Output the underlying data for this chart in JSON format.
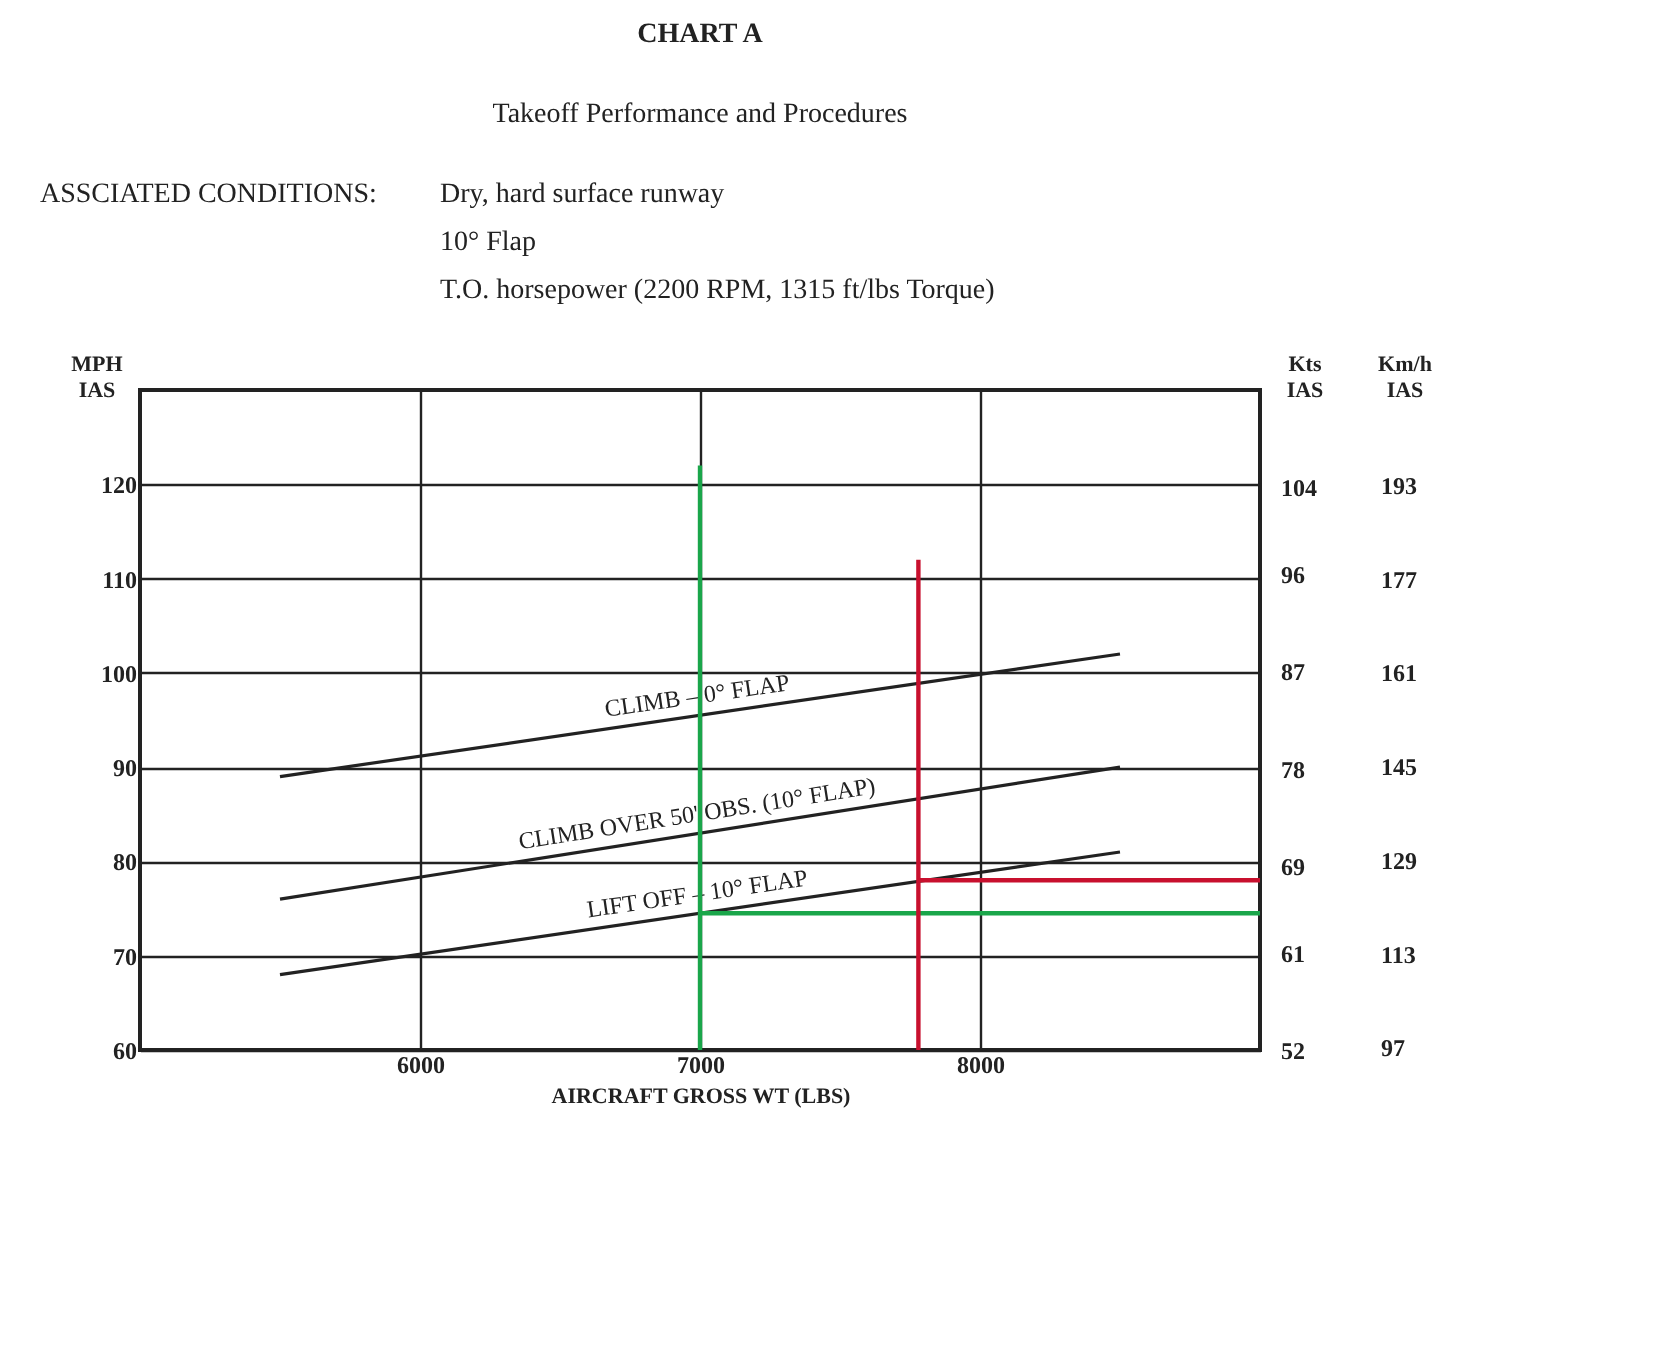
{
  "chart_data": {
    "type": "line",
    "title": "CHART A",
    "subtitle": "Takeoff Performance and Procedures",
    "annotations": [
      "ASSCIATED CONDITIONS:",
      "Dry, hard surface runway",
      "10° Flap",
      "T.O. horsepower (2200 RPM, 1315 ft/lbs Torque)"
    ],
    "xlabel": "AIRCRAFT GROSS WT (LBS)",
    "ylabel": "MPH IAS",
    "y2label": "Kts IAS",
    "y3label": "Km/h IAS",
    "xlim": [
      5000,
      9000
    ],
    "xticks": [
      6000,
      7000,
      8000
    ],
    "ylim": [
      60,
      130
    ],
    "yticks": [
      60,
      70,
      80,
      90,
      100,
      110,
      120
    ],
    "y2lim": [
      52,
      113
    ],
    "y2ticks": [
      52,
      61,
      69,
      78,
      87,
      96,
      104
    ],
    "y3lim": [
      96.56,
      209.21
    ],
    "y3ticks": [
      97,
      113,
      129,
      145,
      161,
      177,
      193
    ],
    "grid": true,
    "marker": "none",
    "line_style": "solid",
    "series": [
      {
        "name": "CLIMB – 0° FLAP",
        "color": "#222222",
        "x": [
          5500,
          8500
        ],
        "values": [
          89,
          102
        ]
      },
      {
        "name": "CLIMB OVER 50' OBS. (10° FLAP)",
        "color": "#222222",
        "x": [
          5500,
          8500
        ],
        "values": [
          76,
          90
        ]
      },
      {
        "name": "LIFT OFF – 10° FLAP",
        "color": "#222222",
        "x": [
          5500,
          8500
        ],
        "values": [
          68,
          81
        ]
      },
      {
        "color": "#1aa64a",
        "x": [
          7000,
          7000
        ],
        "values": [
          60,
          122
        ]
      },
      {
        "color": "#1aa64a",
        "x": [
          7000,
          9000
        ],
        "values": [
          74.5,
          74.5
        ]
      },
      {
        "color": "#c8102e",
        "x": [
          7780,
          7780
        ],
        "values": [
          60,
          112
        ]
      },
      {
        "color": "#c8102e",
        "x": [
          7780,
          9000
        ],
        "values": [
          78,
          78
        ]
      }
    ]
  }
}
